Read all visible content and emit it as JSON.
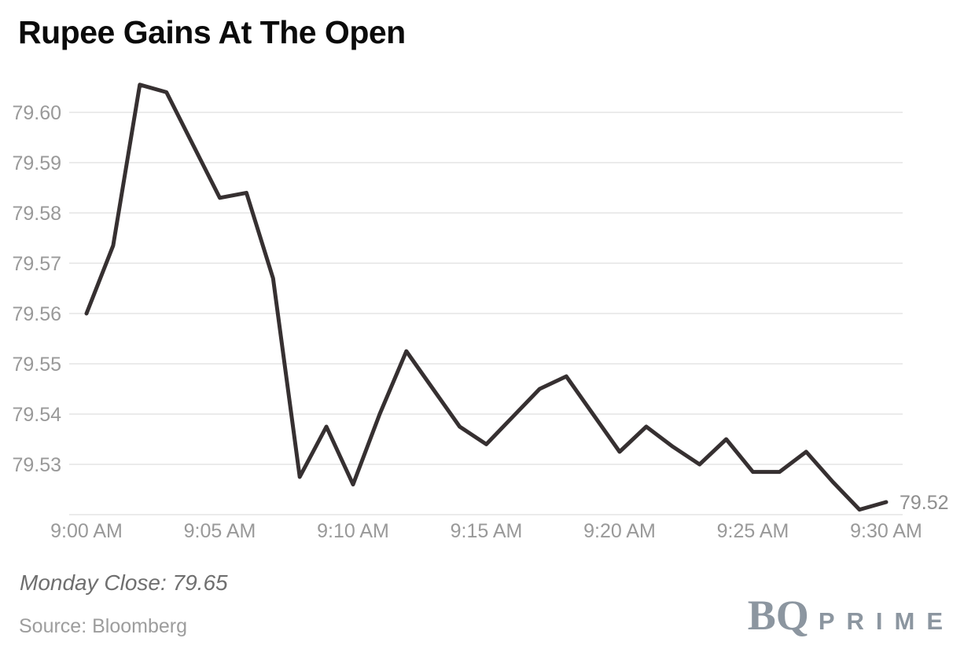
{
  "title": "Rupee Gains At The Open",
  "footer": {
    "monday_close_label": "Monday Close: 79.65",
    "source_label": "Source: Bloomberg"
  },
  "logo": {
    "bq": "BQ",
    "prime": "PRIME"
  },
  "colors": {
    "line": "#363031",
    "grid": "#ebebeb",
    "axis_text": "#999999",
    "end_label_text": "#8f8f8f",
    "title_text": "#0b0b0b",
    "annotation_text": "#6f6f6f",
    "source_text": "#9d9d9d",
    "logo": "#8c96a0",
    "background": "#ffffff"
  },
  "chart_data": {
    "type": "line",
    "title": "Rupee Gains At The Open",
    "xlabel": "",
    "ylabel": "",
    "x_unit": "minutes after 9:00 AM",
    "x_minutes": [
      0,
      1,
      2,
      3,
      4,
      5,
      6,
      7,
      8,
      9,
      10,
      11,
      12,
      13,
      14,
      15,
      16,
      17,
      18,
      19,
      20,
      21,
      22,
      23,
      24,
      25,
      26,
      27,
      28,
      29,
      30
    ],
    "values": [
      79.56,
      79.5735,
      79.6055,
      79.604,
      79.5935,
      79.583,
      79.584,
      79.567,
      79.5275,
      79.5375,
      79.526,
      79.54,
      79.5525,
      79.545,
      79.5375,
      79.534,
      79.5395,
      79.545,
      79.5475,
      79.54,
      79.5325,
      79.5375,
      79.5335,
      79.53,
      79.535,
      79.5285,
      79.5285,
      79.5325,
      79.5265,
      79.521,
      79.5225
    ],
    "x_tick_minutes": [
      0,
      5,
      10,
      15,
      20,
      25,
      30
    ],
    "x_tick_labels": [
      "9:00 AM",
      "9:05 AM",
      "9:10 AM",
      "9:15 AM",
      "9:20 AM",
      "9:25 AM",
      "9:30 AM"
    ],
    "y_tick_values": [
      79.6,
      79.59,
      79.58,
      79.57,
      79.56,
      79.55,
      79.54,
      79.53
    ],
    "y_tick_labels": [
      "79.60",
      "79.59",
      "79.58",
      "79.57",
      "79.56",
      "79.55",
      "79.54",
      "79.53"
    ],
    "y_gridline_values": [
      79.6,
      79.59,
      79.58,
      79.57,
      79.56,
      79.55,
      79.54,
      79.53,
      79.52
    ],
    "ylim": [
      79.52,
      79.6
    ],
    "grid": "horizontal",
    "legend": "none",
    "end_label": "79.52",
    "monday_close": 79.65
  }
}
